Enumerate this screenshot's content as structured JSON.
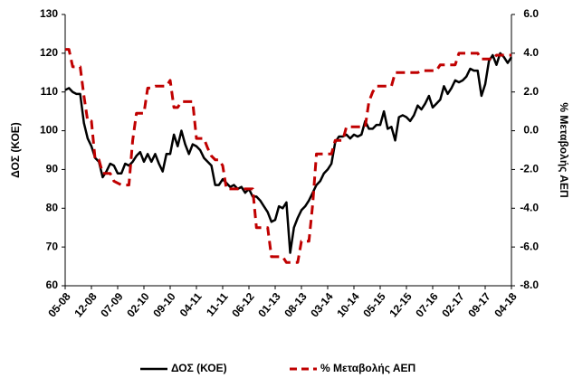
{
  "chart_data": {
    "type": "line",
    "ylabel": "ΔΟΣ (ΚΟΕ)",
    "y2label": "% Μεταβολής ΑΕΠ",
    "categories": [
      "05-08",
      null,
      null,
      null,
      null,
      null,
      null,
      "12-08",
      null,
      null,
      null,
      null,
      null,
      null,
      "07-09",
      null,
      null,
      null,
      null,
      null,
      null,
      "02-10",
      null,
      null,
      null,
      null,
      null,
      null,
      "09-10",
      null,
      null,
      null,
      null,
      null,
      null,
      "04-11",
      null,
      null,
      null,
      null,
      null,
      null,
      "11-11",
      null,
      null,
      null,
      null,
      null,
      null,
      "06-12",
      null,
      null,
      null,
      null,
      null,
      null,
      "01-13",
      null,
      null,
      null,
      null,
      null,
      null,
      "08-13",
      null,
      null,
      null,
      null,
      null,
      null,
      "03-14",
      null,
      null,
      null,
      null,
      null,
      null,
      "10-14",
      null,
      null,
      null,
      null,
      null,
      null,
      "05-15",
      null,
      null,
      null,
      null,
      null,
      null,
      "12-15",
      null,
      null,
      null,
      null,
      null,
      null,
      "07-16",
      null,
      null,
      null,
      null,
      null,
      null,
      "02-17",
      null,
      null,
      null,
      null,
      null,
      null,
      "09-17",
      null,
      null,
      null,
      null,
      null,
      null,
      "04-18"
    ],
    "series": [
      {
        "name": "ΔΟΣ (ΚΟΕ)",
        "color": "#000000",
        "dash": false,
        "values": [
          110.5,
          111,
          110,
          109.5,
          109.5,
          102,
          98,
          96,
          93,
          92,
          88,
          89.5,
          91.5,
          91,
          89,
          89,
          91.5,
          91,
          92,
          93.5,
          94.5,
          92,
          94,
          92,
          94,
          91.5,
          89.5,
          94,
          94,
          99,
          96,
          100,
          96.5,
          94,
          96.5,
          96,
          95,
          93,
          92,
          91,
          86,
          86,
          87.5,
          86.5,
          85.5,
          86,
          85,
          85.5,
          84,
          85,
          83,
          83,
          82,
          80.5,
          79,
          76.5,
          77,
          80.5,
          80,
          81.5,
          68.5,
          75,
          77.5,
          79.5,
          80.5,
          82,
          84,
          86,
          87,
          89,
          90,
          91.5,
          97,
          98.5,
          98.5,
          99,
          98,
          99,
          98.5,
          99,
          102.5,
          100.5,
          100.5,
          101.5,
          101.5,
          105,
          100.5,
          101,
          97.5,
          103.5,
          104,
          103.5,
          102.5,
          104,
          106.5,
          105.5,
          107,
          109,
          106,
          107,
          108,
          111.5,
          109.5,
          111,
          113,
          112.5,
          113,
          114,
          116,
          115.5,
          115.5,
          109,
          112,
          118,
          119.5,
          117,
          120,
          119,
          117.5,
          119
        ]
      },
      {
        "name": "% Μεταβολής ΑΕΠ",
        "color": "#c00000",
        "dash": true,
        "axis": "y2",
        "values": [
          4.2,
          4.2,
          3.3,
          3.3,
          3.3,
          1.8,
          0.5,
          0.5,
          -1.5,
          -1.5,
          -2.2,
          -2.2,
          -2.2,
          -2.6,
          -2.7,
          -2.8,
          -2.8,
          -2.8,
          -0.5,
          0.9,
          0.9,
          0.9,
          2.2,
          2.2,
          2.3,
          2.3,
          2.3,
          2.3,
          2.6,
          1.2,
          1.2,
          1.5,
          1.5,
          1.5,
          1.5,
          -0.4,
          -0.4,
          -0.4,
          -0.9,
          -1.3,
          -1.5,
          -1.5,
          -1.8,
          -3,
          -3,
          -3,
          -3,
          -3,
          -3,
          -3,
          -3,
          -5,
          -5,
          -5,
          -5,
          -6.5,
          -6.5,
          -6.5,
          -6.5,
          -6.8,
          -6.8,
          -6.8,
          -6.8,
          -5.7,
          -5.7,
          -5.7,
          -3.8,
          -1.2,
          -1.2,
          -1.2,
          -1.2,
          -1.2,
          -0.5,
          -0.5,
          -0.5,
          0.2,
          0.2,
          0.2,
          0.2,
          0.2,
          0.2,
          1.5,
          2,
          2.3,
          2.3,
          2.3,
          2.3,
          2.3,
          3,
          3,
          3,
          3,
          3,
          3,
          3,
          3.1,
          3.1,
          3.1,
          3.1,
          3.1,
          3.4,
          3.4,
          3.4,
          3.4,
          3.4,
          4,
          4,
          4,
          4,
          4,
          4,
          3.7,
          3.7,
          3.7,
          3.7,
          3.9,
          3.9,
          3.9,
          3.9,
          3.9
        ]
      }
    ],
    "ylim": [
      60,
      130
    ],
    "yticks": [
      60,
      70,
      80,
      90,
      100,
      110,
      120,
      130
    ],
    "y2lim": [
      -8,
      6
    ],
    "y2ticks": [
      {
        "value": -8,
        "label": "-8.0"
      },
      {
        "value": -6,
        "label": "-6.0"
      },
      {
        "value": -4,
        "label": "-4.0"
      },
      {
        "value": -2,
        "label": "-2.0"
      },
      {
        "value": 0,
        "label": "0.0"
      },
      {
        "value": 2,
        "label": "2.0"
      },
      {
        "value": 4,
        "label": "4.0"
      },
      {
        "value": 6,
        "label": "6.0"
      }
    ],
    "grid": false,
    "legend": "bottom"
  }
}
